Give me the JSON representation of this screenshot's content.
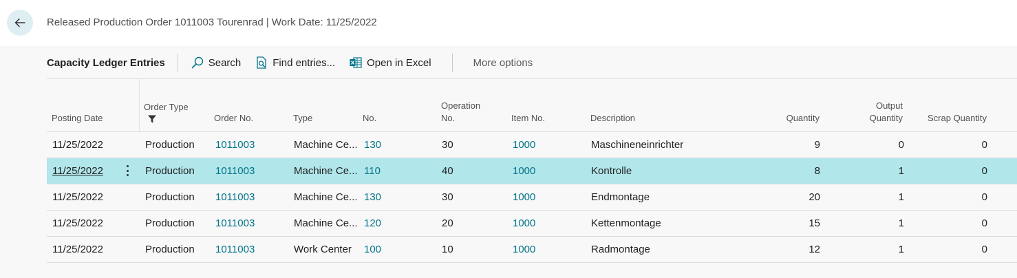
{
  "header": {
    "title": "Released Production Order 1011003 Tourenrad | Work Date: 11/25/2022"
  },
  "toolbar": {
    "caption": "Capacity Ledger Entries",
    "search_label": "Search",
    "find_entries_label": "Find entries...",
    "open_excel_label": "Open in Excel",
    "more_options_label": "More options"
  },
  "grid": {
    "columns": {
      "posting_date": "Posting Date",
      "order_type": "Order Type",
      "order_no": "Order No.",
      "type": "Type",
      "no": "No.",
      "operation_no_1": "Operation",
      "operation_no_2": "No.",
      "item_no": "Item No.",
      "description": "Description",
      "quantity": "Quantity",
      "output_quantity_1": "Output",
      "output_quantity_2": "Quantity",
      "scrap_quantity": "Scrap Quantity"
    },
    "rows": [
      {
        "posting_date": "11/25/2022",
        "order_type": "Production",
        "order_no": "1011003",
        "type": "Machine Ce...",
        "no": "130",
        "operation_no": "30",
        "item_no": "1000",
        "description": "Maschineneinrichter",
        "quantity": "9",
        "output_quantity": "0",
        "scrap_quantity": "0"
      },
      {
        "posting_date": "11/25/2022",
        "order_type": "Production",
        "order_no": "1011003",
        "type": "Machine Ce...",
        "no": "110",
        "operation_no": "40",
        "item_no": "1000",
        "description": "Kontrolle",
        "quantity": "8",
        "output_quantity": "1",
        "scrap_quantity": "0"
      },
      {
        "posting_date": "11/25/2022",
        "order_type": "Production",
        "order_no": "1011003",
        "type": "Machine Ce...",
        "no": "130",
        "operation_no": "30",
        "item_no": "1000",
        "description": "Endmontage",
        "quantity": "20",
        "output_quantity": "1",
        "scrap_quantity": "0"
      },
      {
        "posting_date": "11/25/2022",
        "order_type": "Production",
        "order_no": "1011003",
        "type": "Machine Ce...",
        "no": "120",
        "operation_no": "20",
        "item_no": "1000",
        "description": "Kettenmontage",
        "quantity": "15",
        "output_quantity": "1",
        "scrap_quantity": "0"
      },
      {
        "posting_date": "11/25/2022",
        "order_type": "Production",
        "order_no": "1011003",
        "type": "Work Center",
        "no": "100",
        "operation_no": "10",
        "item_no": "1000",
        "description": "Radmontage",
        "quantity": "12",
        "output_quantity": "1",
        "scrap_quantity": "0"
      }
    ]
  },
  "colors": {
    "accent_link": "#00748a",
    "selected_row": "#b1e6ea",
    "back_button": "#dfeef2"
  },
  "icons": {
    "back": "arrow-left-icon",
    "search": "search-icon",
    "find_entries": "find-entries-icon",
    "excel": "excel-icon",
    "filter": "filter-icon",
    "row_menu": "more-vertical-icon"
  }
}
